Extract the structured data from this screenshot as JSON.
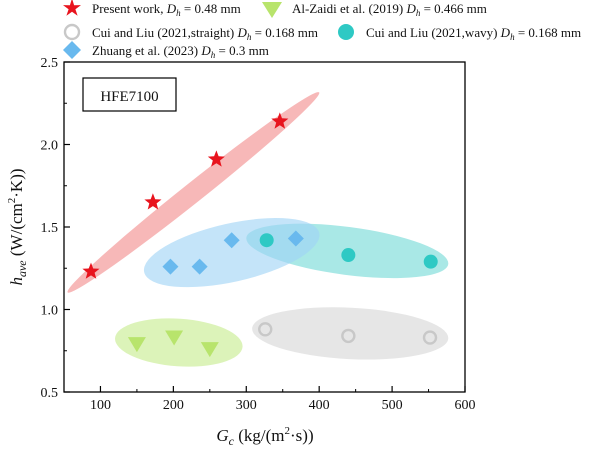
{
  "chart_data": {
    "type": "scatter",
    "x_label": {
      "main": "G",
      "sub": "c",
      "rest": " (kg/(m",
      "sup": "2",
      "tail": "·s))"
    },
    "y_label": {
      "main": "h",
      "sub": "ave",
      "rest": " (W/(cm",
      "sup": "2",
      "tail": "·K))"
    },
    "xlim": [
      50,
      600
    ],
    "ylim": [
      0.5,
      2.5
    ],
    "x_ticks": [
      100,
      200,
      300,
      400,
      500,
      600
    ],
    "y_ticks": [
      0.5,
      1.0,
      1.5,
      2.0,
      2.5
    ],
    "x_tick_labels": [
      "100",
      "200",
      "300",
      "400",
      "500",
      "600"
    ],
    "y_tick_labels": [
      "0.5",
      "1.0",
      "1.5",
      "2.0",
      "2.5"
    ],
    "annotation": "HFE7100",
    "grid": false,
    "series": [
      {
        "name": "Present work",
        "dh": "0.48 mm",
        "marker": "star",
        "color": "#e8141e",
        "x": [
          87,
          172,
          259,
          346
        ],
        "y": [
          1.23,
          1.65,
          1.91,
          2.14
        ],
        "region": {
          "x": [
            55,
            400
          ],
          "y": [
            1.14,
            2.28
          ],
          "color": "#f28c8c"
        }
      },
      {
        "name": "Al-Zaidi et al. (2019)",
        "dh": "0.466 mm",
        "marker": "triangle-down",
        "color": "#b8e46c",
        "x": [
          150,
          201,
          250
        ],
        "y": [
          0.79,
          0.83,
          0.76
        ],
        "region": {
          "x": [
            120,
            295
          ],
          "y": [
            0.69,
            0.91
          ],
          "color": "#c7ec8e"
        }
      },
      {
        "name": "Cui and Liu (2021,straight)",
        "dh": "0.168 mm",
        "marker": "circle-open",
        "color": "#c8c8c8",
        "x": [
          326,
          440,
          552
        ],
        "y": [
          0.88,
          0.84,
          0.83
        ],
        "region": {
          "x": [
            308,
            577
          ],
          "y": [
            0.73,
            0.98
          ],
          "color": "#d6d6d6"
        }
      },
      {
        "name": "Cui and Liu (2021,wavy)",
        "dh": "0.168 mm",
        "marker": "circle-filled",
        "color": "#2ec9c4",
        "x": [
          328,
          440,
          553
        ],
        "y": [
          1.42,
          1.33,
          1.29
        ],
        "region": {
          "x": [
            300,
            577
          ],
          "y": [
            1.19,
            1.52
          ],
          "color": "#74dad6"
        }
      },
      {
        "name": "Zhuang et al. (2023)",
        "dh": "0.3 mm",
        "marker": "diamond",
        "color": "#69b9ee",
        "x": [
          196,
          236,
          280,
          368
        ],
        "y": [
          1.26,
          1.26,
          1.42,
          1.43
        ],
        "region": {
          "x": [
            160,
            400
          ],
          "y": [
            1.11,
            1.58
          ],
          "color": "#9fd3f5"
        }
      }
    ]
  }
}
